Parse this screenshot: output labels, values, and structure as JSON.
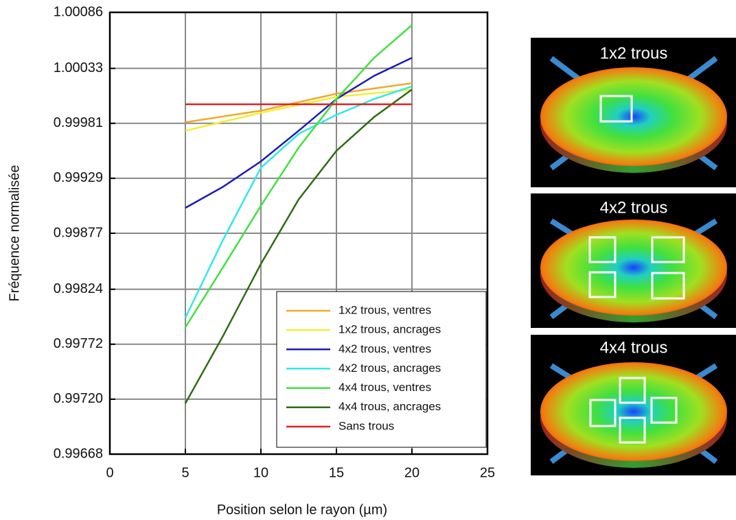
{
  "chart_data": {
    "type": "line",
    "xlabel": "Position selon le rayon (µm)",
    "ylabel": "Fréquence normalisée",
    "x": [
      5,
      7.5,
      10,
      12.5,
      15,
      17.5,
      20
    ],
    "series": [
      {
        "name": "1x2 trous, ventres",
        "color": "#f0a830",
        "values": [
          0.99982,
          null,
          0.99993,
          null,
          1.00009,
          null,
          1.00019
        ]
      },
      {
        "name": "1x2 trous, ancrages",
        "color": "#f0f030",
        "values": [
          0.99974,
          null,
          0.99991,
          null,
          1.00006,
          null,
          1.00013
        ]
      },
      {
        "name": "4x2 trous, ventres",
        "color": "#1a1ab8",
        "values": [
          0.99901,
          0.99921,
          0.99945,
          0.99974,
          1.00004,
          1.00026,
          1.00043
        ]
      },
      {
        "name": "4x2 trous, ancrages",
        "color": "#30e8e8",
        "values": [
          0.99797,
          0.99871,
          0.99939,
          0.99971,
          0.99989,
          1.00004,
          1.00016
        ]
      },
      {
        "name": "4x4 trous, ventres",
        "color": "#40e040",
        "values": [
          0.99788,
          0.99845,
          0.99903,
          0.99958,
          1.00004,
          1.00043,
          1.00074
        ]
      },
      {
        "name": "4x4 trous, ancrages",
        "color": "#2e6a14",
        "values": [
          0.99716,
          0.9978,
          0.99848,
          0.99909,
          0.99955,
          0.99987,
          1.00013
        ]
      },
      {
        "name": "Sans trous",
        "color": "#e02020",
        "values": [
          0.99999,
          null,
          null,
          null,
          null,
          null,
          0.99999
        ]
      }
    ],
    "xlim": [
      0,
      25
    ],
    "xticks": [
      0,
      5,
      10,
      15,
      20,
      25
    ],
    "ylim": [
      0.99668,
      1.00086
    ],
    "yticks": [
      0.99668,
      {
        "value": 0.9972,
        "label": "0.99720"
      },
      0.99772,
      0.99824,
      0.99877,
      0.99929,
      0.99981,
      1.00033,
      1.00086
    ],
    "grid": true,
    "legend": "lower right"
  },
  "panels": [
    {
      "title": "1x2 trous"
    },
    {
      "title": "4x2 trous"
    },
    {
      "title": "4x4 trous"
    }
  ]
}
